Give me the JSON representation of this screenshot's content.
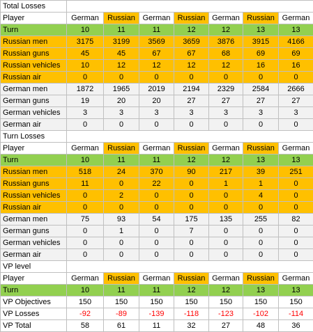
{
  "colors": {
    "russian_highlight": "#ffc000",
    "turn_row": "#92d050",
    "german_rows": "#f2f2f2",
    "negative_text": "#ff0000",
    "grid": "#bfbfbf"
  },
  "header": {
    "player_label": "Player",
    "turn_label": "Turn",
    "players": [
      "German",
      "Russian",
      "German",
      "Russian",
      "German",
      "Russian",
      "German"
    ],
    "turns": [
      "10",
      "11",
      "11",
      "12",
      "12",
      "13",
      "13"
    ]
  },
  "sections": [
    {
      "title": "Total Losses",
      "rows": [
        {
          "label": "Russian men",
          "values": [
            "3175",
            "3199",
            "3569",
            "3659",
            "3876",
            "3915",
            "4166"
          ]
        },
        {
          "label": "Russian guns",
          "values": [
            "45",
            "45",
            "67",
            "67",
            "68",
            "69",
            "69"
          ]
        },
        {
          "label": "Russian vehicles",
          "values": [
            "10",
            "12",
            "12",
            "12",
            "12",
            "16",
            "16"
          ]
        },
        {
          "label": "Russian air",
          "values": [
            "0",
            "0",
            "0",
            "0",
            "0",
            "0",
            "0"
          ]
        },
        {
          "label": "German men",
          "values": [
            "1872",
            "1965",
            "2019",
            "2194",
            "2329",
            "2584",
            "2666"
          ]
        },
        {
          "label": "German guns",
          "values": [
            "19",
            "20",
            "20",
            "27",
            "27",
            "27",
            "27"
          ]
        },
        {
          "label": "German vehicles",
          "values": [
            "3",
            "3",
            "3",
            "3",
            "3",
            "3",
            "3"
          ]
        },
        {
          "label": "German air",
          "values": [
            "0",
            "0",
            "0",
            "0",
            "0",
            "0",
            "0"
          ]
        }
      ]
    },
    {
      "title": "Turn Losses",
      "rows": [
        {
          "label": "Russian men",
          "values": [
            "518",
            "24",
            "370",
            "90",
            "217",
            "39",
            "251"
          ]
        },
        {
          "label": "Russian guns",
          "values": [
            "11",
            "0",
            "22",
            "0",
            "1",
            "1",
            "0"
          ]
        },
        {
          "label": "Russian vehicles",
          "values": [
            "0",
            "2",
            "0",
            "0",
            "0",
            "4",
            "0"
          ]
        },
        {
          "label": "Russian air",
          "values": [
            "0",
            "0",
            "0",
            "0",
            "0",
            "0",
            "0"
          ]
        },
        {
          "label": "German men",
          "values": [
            "75",
            "93",
            "54",
            "175",
            "135",
            "255",
            "82"
          ]
        },
        {
          "label": "German guns",
          "values": [
            "0",
            "1",
            "0",
            "7",
            "0",
            "0",
            "0"
          ]
        },
        {
          "label": "German vehicles",
          "values": [
            "0",
            "0",
            "0",
            "0",
            "0",
            "0",
            "0"
          ]
        },
        {
          "label": "German air",
          "values": [
            "0",
            "0",
            "0",
            "0",
            "0",
            "0",
            "0"
          ]
        }
      ]
    },
    {
      "title": "VP level",
      "rows": [
        {
          "label": "VP Objectives",
          "values": [
            "150",
            "150",
            "150",
            "150",
            "150",
            "150",
            "150"
          ]
        },
        {
          "label": "VP Losses",
          "values": [
            "-92",
            "-89",
            "-139",
            "-118",
            "-123",
            "-102",
            "-114"
          ]
        },
        {
          "label": "VP Total",
          "values": [
            "58",
            "61",
            "11",
            "32",
            "27",
            "48",
            "36"
          ]
        }
      ]
    }
  ]
}
